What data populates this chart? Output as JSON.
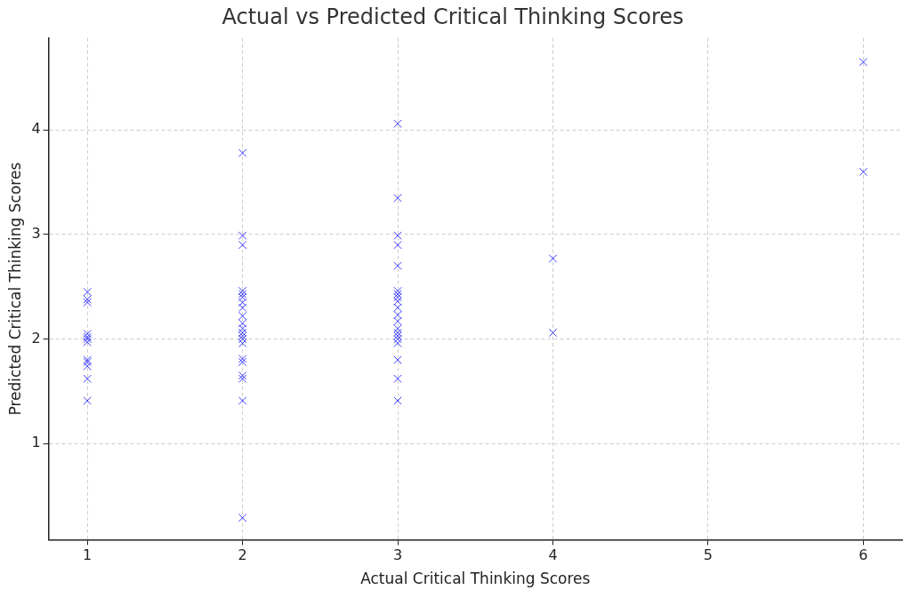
{
  "chart_data": {
    "type": "scatter",
    "title": "Actual vs Predicted Critical Thinking Scores",
    "xlabel": "Actual Critical Thinking Scores",
    "ylabel": "Predicted Critical Thinking Scores",
    "series": [
      {
        "color": "#0000ff",
        "x": [
          1,
          1,
          1,
          1,
          1,
          1,
          1,
          1,
          1,
          1,
          1,
          1,
          2,
          2,
          2,
          2,
          2,
          2,
          2,
          2,
          2,
          2,
          2,
          2,
          2,
          2,
          2,
          2,
          2,
          2,
          2,
          2,
          2,
          3,
          3,
          3,
          3,
          3,
          3,
          3,
          3,
          3,
          3,
          3,
          3,
          3,
          3,
          3,
          3,
          3,
          3,
          3,
          3,
          4,
          4,
          6,
          6
        ],
        "values": [
          2.45,
          2.38,
          2.35,
          2.05,
          2.02,
          2.0,
          1.97,
          1.8,
          1.78,
          1.74,
          1.62,
          1.41,
          0.29,
          1.41,
          1.62,
          1.65,
          1.78,
          1.81,
          1.96,
          2.0,
          2.03,
          2.06,
          2.1,
          2.15,
          2.22,
          2.3,
          2.35,
          2.4,
          2.43,
          2.46,
          2.9,
          2.99,
          3.78,
          1.41,
          1.62,
          1.8,
          1.96,
          2.0,
          2.03,
          2.06,
          2.1,
          2.17,
          2.23,
          2.3,
          2.36,
          2.4,
          2.43,
          2.46,
          2.7,
          2.9,
          2.99,
          3.35,
          4.06,
          2.06,
          2.77,
          3.6,
          4.65
        ]
      }
    ],
    "xlim": [
      0.75,
      6.25
    ],
    "xticks": [
      1,
      2,
      3,
      4,
      5,
      6
    ],
    "ylim": [
      0.08,
      4.88
    ],
    "yticks": [
      1,
      2,
      3,
      4
    ],
    "grid": true,
    "marker": "cross",
    "legend": false
  }
}
